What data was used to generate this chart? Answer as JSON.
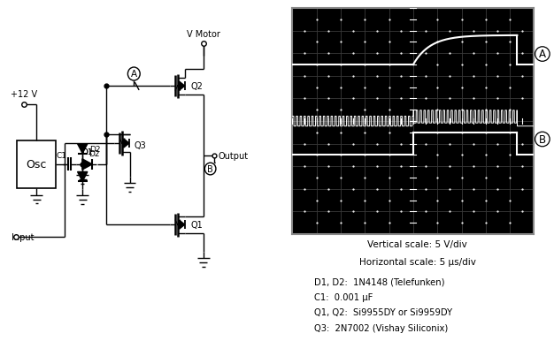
{
  "osc_label": "Osc",
  "v12_label": "+12 V",
  "vmotor_label": "V Motor",
  "input_label": "Input",
  "output_label": "Output",
  "scale_text1": "Vertical scale: 5 V/div",
  "scale_text2": "Horizontal scale: 5 μs/div",
  "parts_text": [
    "D1, D2:  1N4148 (Telefunken)",
    "C1:  0.001 μF",
    "Q1, Q2:  Si9955DY or Si9959DY",
    "Q3:  2N7002 (Vishay Siliconix)"
  ],
  "bg_color": "#ffffff",
  "scope_bg": "#000000",
  "lc": "#000000",
  "scope_grid_color": "#3a3a3a",
  "scope_line_color": "#ffffff"
}
